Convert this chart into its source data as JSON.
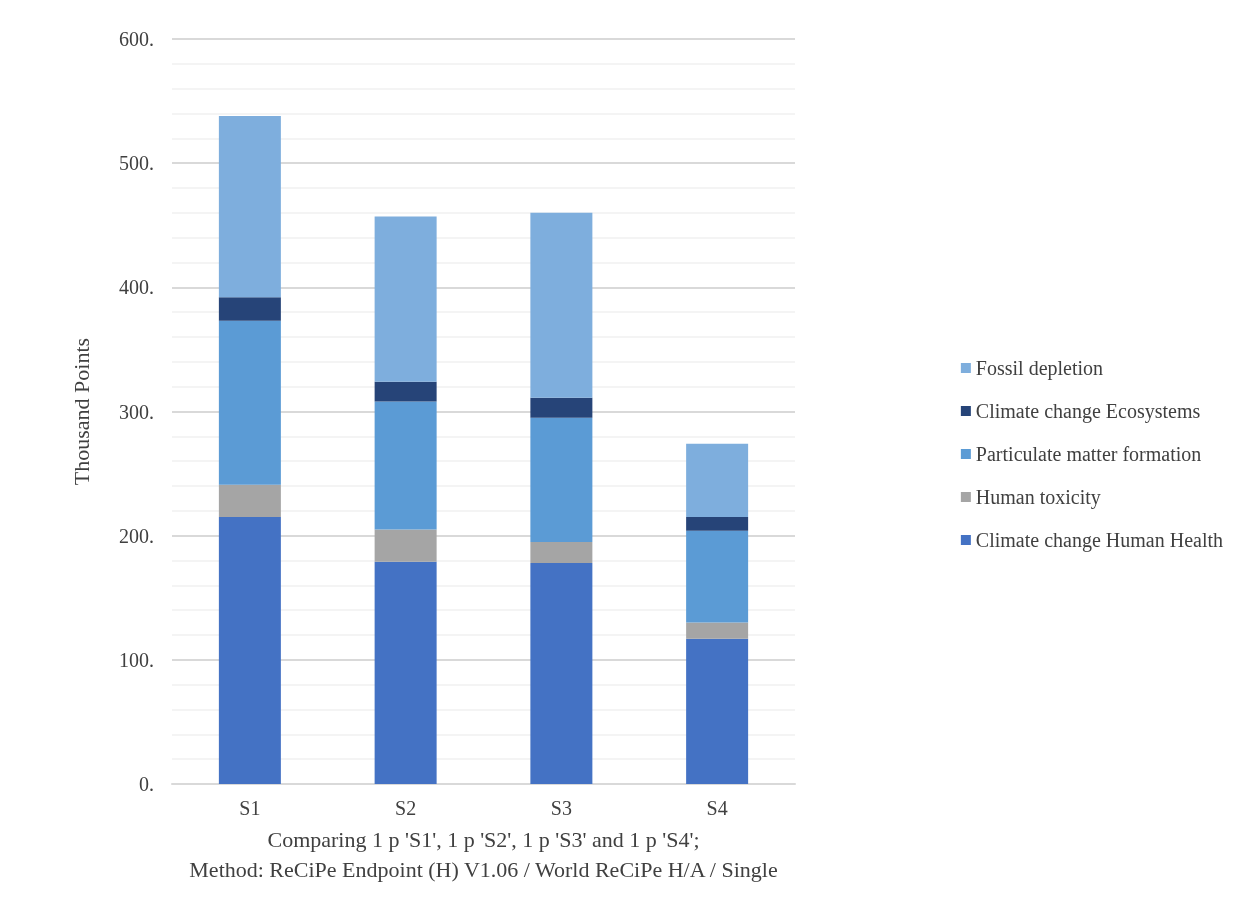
{
  "chart_data": {
    "type": "bar",
    "stacked": true,
    "xlabel": "Comparing 1 p 'S1', 1 p 'S2', 1 p 'S3' and 1 p 'S4';\nMethod: ReCiPe Endpoint (H) V1.06 / World ReCiPe H/A / Single",
    "ylabel": "Thousand Points",
    "categories": [
      "S1",
      "S2",
      "S3",
      "S4"
    ],
    "series": [
      {
        "name": "Climate change Human Health",
        "color": "#4472c4",
        "values": [
          215,
          179,
          178,
          117
        ]
      },
      {
        "name": "Human toxicity",
        "color": "#a5a5a5",
        "values": [
          26,
          26,
          17,
          13
        ]
      },
      {
        "name": "Particulate matter formation",
        "color": "#5b9bd5",
        "values": [
          132,
          103,
          100,
          74
        ]
      },
      {
        "name": "Climate change Ecosystems",
        "color": "#264478",
        "values": [
          19,
          16,
          16,
          11
        ]
      },
      {
        "name": "Fossil depletion",
        "color": "#7eaedd",
        "values": [
          146,
          133,
          149,
          59
        ]
      }
    ],
    "ylim": [
      0,
      600
    ],
    "yticks": [
      {
        "value": 0,
        "label": "0."
      },
      {
        "value": 100,
        "label": "100."
      },
      {
        "value": 200,
        "label": "200."
      },
      {
        "value": 300,
        "label": "300."
      },
      {
        "value": 400,
        "label": "400."
      },
      {
        "value": 500,
        "label": "500."
      },
      {
        "value": 600,
        "label": "600."
      }
    ],
    "grid": true,
    "legend": "right"
  }
}
